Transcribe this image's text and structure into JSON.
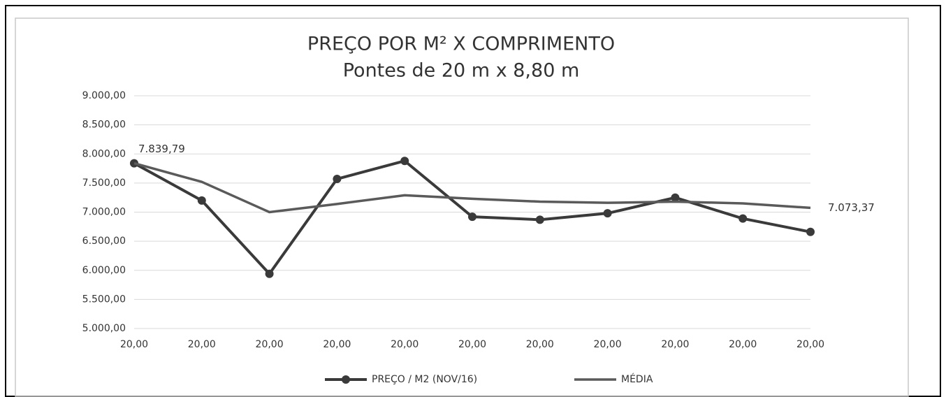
{
  "chart_data": {
    "type": "line",
    "title": "PREÇO POR M² X COMPRIMENTO",
    "subtitle": "Pontes de 20 m x 8,80 m",
    "categories": [
      "20,00",
      "20,00",
      "20,00",
      "20,00",
      "20,00",
      "20,00",
      "20,00",
      "20,00",
      "20,00",
      "20,00",
      "20,00"
    ],
    "series": [
      {
        "name": "PREÇO / M2 (NOV/16)",
        "color": "#3a3a3a",
        "markers": true,
        "values": [
          7839.79,
          7200,
          5940,
          7570,
          7880,
          6920,
          6870,
          6980,
          7250,
          6890,
          6660
        ],
        "value_labels": [
          "7.839,79",
          null,
          null,
          null,
          null,
          null,
          null,
          null,
          null,
          null,
          null
        ]
      },
      {
        "name": "MÉDIA",
        "color": "#5a5a5a",
        "markers": false,
        "values": [
          7839.79,
          7520,
          7000,
          7140,
          7290,
          7230,
          7180,
          7160,
          7180,
          7150,
          7073.37
        ],
        "value_labels": [
          null,
          null,
          null,
          null,
          null,
          null,
          null,
          null,
          null,
          null,
          "7.073,37"
        ]
      }
    ],
    "ylim": [
      5000,
      9000
    ],
    "yticks": [
      {
        "value": 5000,
        "label": "5.000,00"
      },
      {
        "value": 5500,
        "label": "5.500,00"
      },
      {
        "value": 6000,
        "label": "6.000,00"
      },
      {
        "value": 6500,
        "label": "6.500,00"
      },
      {
        "value": 7000,
        "label": "7.000,00"
      },
      {
        "value": 7500,
        "label": "7.500,00"
      },
      {
        "value": 8000,
        "label": "8.000,00"
      },
      {
        "value": 8500,
        "label": "8.500,00"
      },
      {
        "value": 9000,
        "label": "9.000,00"
      }
    ],
    "grid": true,
    "legend": "bottom"
  }
}
